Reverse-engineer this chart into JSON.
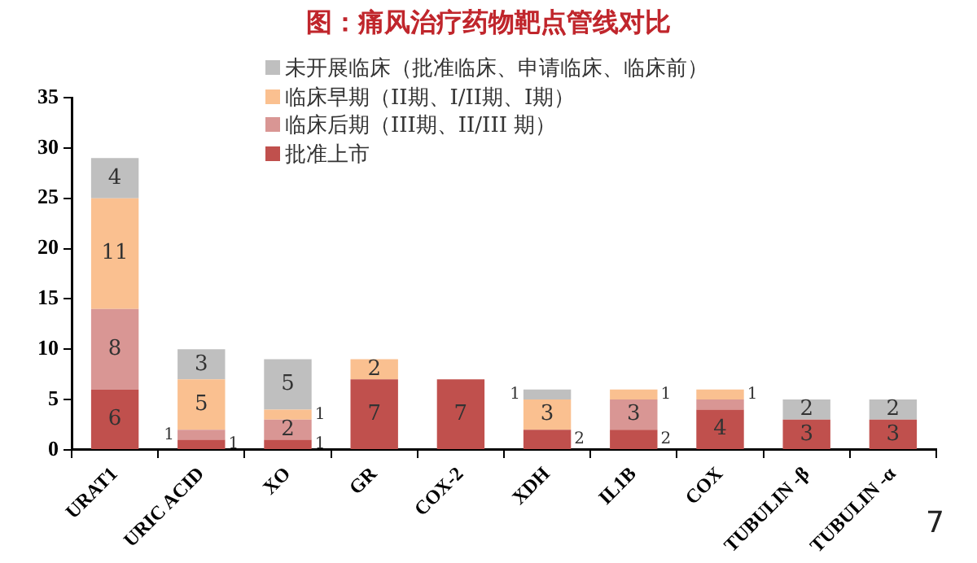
{
  "chart_data": {
    "type": "bar",
    "stacked": true,
    "title": "图：痛风治疗药物靶点管线对比",
    "categories": [
      "URAT1",
      "URIC ACID",
      "XO",
      "GR",
      "COX-2",
      "XDH",
      "IL1B",
      "COX",
      "TUBULIN -β",
      "TUBULIN -α"
    ],
    "series": [
      {
        "name": "批准上市",
        "color": "#c0504d",
        "values": [
          6,
          1,
          1,
          7,
          7,
          2,
          2,
          4,
          3,
          3
        ],
        "value_labels": [
          "6",
          "1",
          "1",
          "7",
          "7",
          "2",
          "2",
          "4",
          "3",
          "3"
        ]
      },
      {
        "name": "临床后期（III期、II/III 期）",
        "color": "#d99694",
        "values": [
          8,
          1,
          2,
          0,
          0,
          0,
          3,
          1,
          0,
          0
        ],
        "value_labels": [
          "8",
          "1",
          "2",
          null,
          null,
          null,
          "3",
          null,
          null,
          null
        ]
      },
      {
        "name": "临床早期（II期、I/II期、I期）",
        "color": "#fac090",
        "values": [
          11,
          5,
          1,
          2,
          0,
          3,
          1,
          1,
          0,
          0
        ],
        "value_labels": [
          "11",
          "5",
          "1",
          "2",
          null,
          "3",
          "1",
          "1",
          null,
          null
        ]
      },
      {
        "name": "未开展临床（批准临床、申请临床、临床前）",
        "color": "#bfbfbf",
        "values": [
          4,
          3,
          5,
          0,
          0,
          1,
          0,
          0,
          2,
          2
        ],
        "value_labels": [
          "4",
          "3",
          "5",
          null,
          null,
          "1",
          null,
          null,
          "2",
          "2"
        ]
      }
    ],
    "ylim": [
      0,
      35
    ],
    "yticks": [
      0,
      5,
      10,
      15,
      20,
      25,
      30,
      35
    ],
    "grid": false,
    "legend": "top",
    "annotations": [
      "7"
    ]
  }
}
